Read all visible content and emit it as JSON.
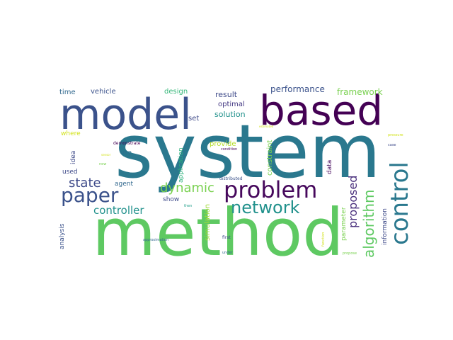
{
  "words": [
    {
      "text": "system",
      "color": "#2a788e"
    },
    {
      "text": "method",
      "color": "#5ec962"
    },
    {
      "text": "model",
      "color": "#3b528b"
    },
    {
      "text": "based",
      "color": "#440154"
    },
    {
      "text": "problem",
      "color": "#46085c"
    },
    {
      "text": "control",
      "color": "#2a788e"
    },
    {
      "text": "paper",
      "color": "#3b528b"
    },
    {
      "text": "network",
      "color": "#21918c"
    },
    {
      "text": "algorithm",
      "color": "#5ec962"
    },
    {
      "text": "dynamic",
      "color": "#7ad151"
    },
    {
      "text": "state",
      "color": "#3e4a89"
    },
    {
      "text": "proposed",
      "color": "#472d7b"
    },
    {
      "text": "controller",
      "color": "#21918c"
    },
    {
      "text": "performance",
      "color": "#3b528b"
    },
    {
      "text": "framework",
      "color": "#7ad151"
    },
    {
      "text": "result",
      "color": "#3e4a89"
    },
    {
      "text": "solution",
      "color": "#21918c"
    },
    {
      "text": "optimal",
      "color": "#443983"
    },
    {
      "text": "vehicle",
      "color": "#3b528b"
    },
    {
      "text": "time",
      "color": "#31688e"
    },
    {
      "text": "design",
      "color": "#35b779"
    },
    {
      "text": "set",
      "color": "#3e4a89"
    },
    {
      "text": "provide",
      "color": "#b5de2b"
    },
    {
      "text": "constraint",
      "color": "#7ad151"
    },
    {
      "text": "simulation",
      "color": "#a0da39"
    },
    {
      "text": "application",
      "color": "#2db27d"
    },
    {
      "text": "parameter",
      "color": "#7ad151"
    },
    {
      "text": "information",
      "color": "#3e4a89"
    },
    {
      "text": "where",
      "color": "#d2e21b"
    },
    {
      "text": "use",
      "color": "#2c728e"
    },
    {
      "text": "used",
      "color": "#3e4a89"
    },
    {
      "text": "idea",
      "color": "#3e4a89"
    },
    {
      "text": "agent",
      "color": "#31688e"
    },
    {
      "text": "show",
      "color": "#3e4a89"
    },
    {
      "text": "data",
      "color": "#46085c"
    },
    {
      "text": "analysis",
      "color": "#3b528b"
    },
    {
      "text": "demonstrate",
      "color": "#440154"
    },
    {
      "text": "sensor",
      "color": "#d2e21b"
    },
    {
      "text": "new",
      "color": "#7ad151"
    },
    {
      "text": "condition",
      "color": "#440154"
    },
    {
      "text": "distributed",
      "color": "#3b528b"
    },
    {
      "text": "approximation",
      "color": "#31688e"
    },
    {
      "text": "then",
      "color": "#1f9e89"
    },
    {
      "text": "first",
      "color": "#3e4a89"
    },
    {
      "text": "under",
      "color": "#31688e"
    },
    {
      "text": "function",
      "color": "#d2e21b"
    },
    {
      "text": "propose",
      "color": "#7ad151"
    },
    {
      "text": "pressure",
      "color": "#d2e21b"
    },
    {
      "text": "case",
      "color": "#3e4a89"
    },
    {
      "text": "estimated",
      "color": "#d2e21b"
    }
  ]
}
